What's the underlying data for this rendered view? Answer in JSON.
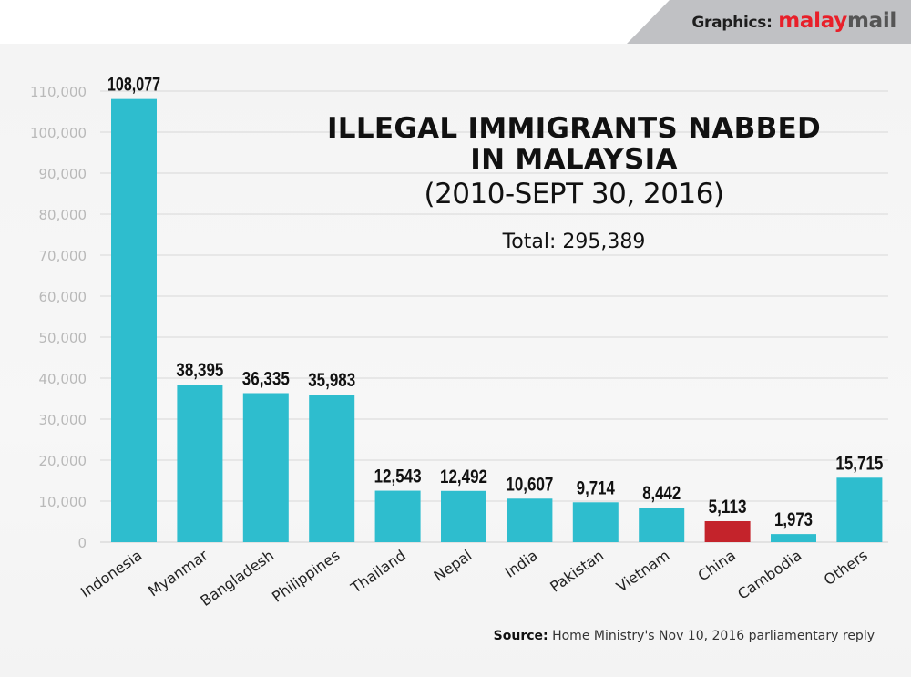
{
  "branding": {
    "label": "Graphics:",
    "brand_part1": "malay",
    "brand_part2": "mail",
    "colors": {
      "part1": "#e8202a",
      "part2": "#555555",
      "band": "#c0c1c4"
    }
  },
  "title": {
    "line1": "ILLEGAL IMMIGRANTS NABBED",
    "line2": "IN MALAYSIA",
    "subtitle": "(2010-SEPT 30, 2016)",
    "total": "Total: 295,389"
  },
  "source": {
    "label": "Source:",
    "text": " Home Ministry's Nov 10, 2016 parliamentary reply"
  },
  "chart_data": {
    "type": "bar",
    "title": "ILLEGAL IMMIGRANTS NABBED IN MALAYSIA (2010-SEPT 30, 2016)",
    "subtitle": "Total: 295,389",
    "xlabel": "",
    "ylabel": "",
    "ylim": [
      0,
      110000
    ],
    "yticks": [
      0,
      10000,
      20000,
      30000,
      40000,
      50000,
      60000,
      70000,
      80000,
      90000,
      100000,
      110000
    ],
    "ytick_labels": [
      "0",
      "10,000",
      "20,000",
      "30,000",
      "40,000",
      "50,000",
      "60,000",
      "70,000",
      "80,000",
      "90,000",
      "100,000",
      "110,000"
    ],
    "grid": true,
    "categories": [
      "Indonesia",
      "Myanmar",
      "Bangladesh",
      "Philippines",
      "Thailand",
      "Nepal",
      "India",
      "Pakistan",
      "Vietnam",
      "China",
      "Cambodia",
      "Others"
    ],
    "values": [
      108077,
      38395,
      36335,
      35983,
      12543,
      12492,
      10607,
      9714,
      8442,
      5113,
      1973,
      15715
    ],
    "value_labels": [
      "108,077",
      "38,395",
      "36,335",
      "35,983",
      "12,543",
      "12,492",
      "10,607",
      "9,714",
      "8,442",
      "5,113",
      "1,973",
      "15,715"
    ],
    "bar_colors": [
      "#2ebdce",
      "#2ebdce",
      "#2ebdce",
      "#2ebdce",
      "#2ebdce",
      "#2ebdce",
      "#2ebdce",
      "#2ebdce",
      "#2ebdce",
      "#c4232b",
      "#2ebdce",
      "#2ebdce"
    ],
    "highlight": "China",
    "source": "Source: Home Ministry's Nov 10, 2016 parliamentary reply"
  }
}
